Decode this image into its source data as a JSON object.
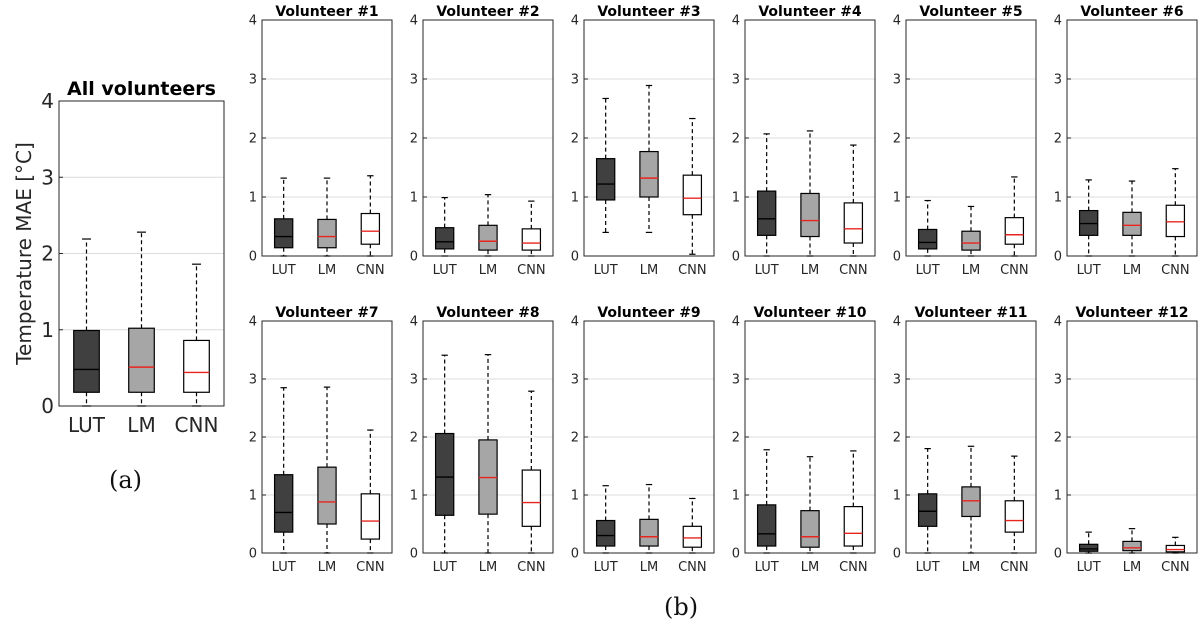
{
  "figure": {
    "label_a": "(a)",
    "label_b": "(b)"
  },
  "colors": {
    "LUT": "#404040",
    "LM": "#a6a6a6",
    "CNN": "#ffffff",
    "median_LUT": "#000000",
    "median_other": "#e8241f",
    "grid": "#dcdcdc"
  },
  "chart_data": [
    {
      "type": "box",
      "title": "All volunteers",
      "ylabel": "Temperature MAE [°C]",
      "categories": [
        "LUT",
        "LM",
        "CNN"
      ],
      "ylim": [
        0,
        4
      ],
      "yticks": [
        0,
        1,
        2,
        3,
        4
      ],
      "grid": "y",
      "boxes": [
        {
          "min": 0.0,
          "q1": 0.18,
          "median": 0.48,
          "q3": 0.99,
          "max": 2.19
        },
        {
          "min": 0.0,
          "q1": 0.18,
          "median": 0.51,
          "q3": 1.02,
          "max": 2.28
        },
        {
          "min": 0.0,
          "q1": 0.18,
          "median": 0.44,
          "q3": 0.86,
          "max": 1.86
        }
      ]
    },
    {
      "type": "box",
      "title": "Volunteer #1",
      "categories": [
        "LUT",
        "LM",
        "CNN"
      ],
      "ylim": [
        0,
        4
      ],
      "yticks": [
        0,
        1,
        2,
        3,
        4
      ],
      "boxes": [
        {
          "min": 0.0,
          "q1": 0.14,
          "median": 0.33,
          "q3": 0.63,
          "max": 1.32
        },
        {
          "min": 0.0,
          "q1": 0.14,
          "median": 0.33,
          "q3": 0.62,
          "max": 1.32
        },
        {
          "min": 0.0,
          "q1": 0.2,
          "median": 0.42,
          "q3": 0.72,
          "max": 1.36
        }
      ]
    },
    {
      "type": "box",
      "title": "Volunteer #2",
      "categories": [
        "LUT",
        "LM",
        "CNN"
      ],
      "ylim": [
        0,
        4
      ],
      "yticks": [
        0,
        1,
        2,
        3,
        4
      ],
      "boxes": [
        {
          "min": 0.0,
          "q1": 0.12,
          "median": 0.24,
          "q3": 0.48,
          "max": 0.99
        },
        {
          "min": 0.0,
          "q1": 0.1,
          "median": 0.25,
          "q3": 0.52,
          "max": 1.04
        },
        {
          "min": 0.0,
          "q1": 0.1,
          "median": 0.22,
          "q3": 0.46,
          "max": 0.93
        }
      ]
    },
    {
      "type": "box",
      "title": "Volunteer #3",
      "categories": [
        "LUT",
        "LM",
        "CNN"
      ],
      "ylim": [
        0,
        4
      ],
      "yticks": [
        0,
        1,
        2,
        3,
        4
      ],
      "boxes": [
        {
          "min": 0.4,
          "q1": 0.95,
          "median": 1.22,
          "q3": 1.65,
          "max": 2.67
        },
        {
          "min": 0.4,
          "q1": 1.0,
          "median": 1.32,
          "q3": 1.77,
          "max": 2.89
        },
        {
          "min": 0.03,
          "q1": 0.7,
          "median": 0.98,
          "q3": 1.37,
          "max": 2.33
        }
      ]
    },
    {
      "type": "box",
      "title": "Volunteer #4",
      "categories": [
        "LUT",
        "LM",
        "CNN"
      ],
      "ylim": [
        0,
        4
      ],
      "yticks": [
        0,
        1,
        2,
        3,
        4
      ],
      "boxes": [
        {
          "min": 0.0,
          "q1": 0.35,
          "median": 0.63,
          "q3": 1.1,
          "max": 2.07
        },
        {
          "min": 0.0,
          "q1": 0.33,
          "median": 0.6,
          "q3": 1.06,
          "max": 2.12
        },
        {
          "min": 0.0,
          "q1": 0.22,
          "median": 0.46,
          "q3": 0.9,
          "max": 1.88
        }
      ]
    },
    {
      "type": "box",
      "title": "Volunteer #5",
      "categories": [
        "LUT",
        "LM",
        "CNN"
      ],
      "ylim": [
        0,
        4
      ],
      "yticks": [
        0,
        1,
        2,
        3,
        4
      ],
      "boxes": [
        {
          "min": 0.0,
          "q1": 0.12,
          "median": 0.23,
          "q3": 0.45,
          "max": 0.94
        },
        {
          "min": 0.0,
          "q1": 0.1,
          "median": 0.22,
          "q3": 0.42,
          "max": 0.84
        },
        {
          "min": 0.0,
          "q1": 0.2,
          "median": 0.36,
          "q3": 0.65,
          "max": 1.34
        }
      ]
    },
    {
      "type": "box",
      "title": "Volunteer #6",
      "categories": [
        "LUT",
        "LM",
        "CNN"
      ],
      "ylim": [
        0,
        4
      ],
      "yticks": [
        0,
        1,
        2,
        3,
        4
      ],
      "boxes": [
        {
          "min": 0.0,
          "q1": 0.35,
          "median": 0.55,
          "q3": 0.77,
          "max": 1.29
        },
        {
          "min": 0.0,
          "q1": 0.35,
          "median": 0.52,
          "q3": 0.74,
          "max": 1.27
        },
        {
          "min": 0.0,
          "q1": 0.33,
          "median": 0.58,
          "q3": 0.86,
          "max": 1.48
        }
      ]
    },
    {
      "type": "box",
      "title": "Volunteer #7",
      "categories": [
        "LUT",
        "LM",
        "CNN"
      ],
      "ylim": [
        0,
        4
      ],
      "yticks": [
        0,
        1,
        2,
        3,
        4
      ],
      "boxes": [
        {
          "min": 0.0,
          "q1": 0.36,
          "median": 0.7,
          "q3": 1.35,
          "max": 2.85
        },
        {
          "min": 0.0,
          "q1": 0.5,
          "median": 0.88,
          "q3": 1.48,
          "max": 2.86
        },
        {
          "min": 0.0,
          "q1": 0.24,
          "median": 0.55,
          "q3": 1.02,
          "max": 2.12
        }
      ]
    },
    {
      "type": "box",
      "title": "Volunteer #8",
      "categories": [
        "LUT",
        "LM",
        "CNN"
      ],
      "ylim": [
        0,
        4
      ],
      "yticks": [
        0,
        1,
        2,
        3,
        4
      ],
      "boxes": [
        {
          "min": 0.0,
          "q1": 0.65,
          "median": 1.31,
          "q3": 2.06,
          "max": 3.41
        },
        {
          "min": 0.0,
          "q1": 0.67,
          "median": 1.3,
          "q3": 1.95,
          "max": 3.42
        },
        {
          "min": 0.0,
          "q1": 0.46,
          "median": 0.87,
          "q3": 1.43,
          "max": 2.79
        }
      ]
    },
    {
      "type": "box",
      "title": "Volunteer #9",
      "categories": [
        "LUT",
        "LM",
        "CNN"
      ],
      "ylim": [
        0,
        4
      ],
      "yticks": [
        0,
        1,
        2,
        3,
        4
      ],
      "boxes": [
        {
          "min": 0.0,
          "q1": 0.12,
          "median": 0.3,
          "q3": 0.56,
          "max": 1.16
        },
        {
          "min": 0.0,
          "q1": 0.12,
          "median": 0.28,
          "q3": 0.58,
          "max": 1.18
        },
        {
          "min": 0.0,
          "q1": 0.1,
          "median": 0.26,
          "q3": 0.46,
          "max": 0.94
        }
      ]
    },
    {
      "type": "box",
      "title": "Volunteer #10",
      "categories": [
        "LUT",
        "LM",
        "CNN"
      ],
      "ylim": [
        0,
        4
      ],
      "yticks": [
        0,
        1,
        2,
        3,
        4
      ],
      "boxes": [
        {
          "min": 0.0,
          "q1": 0.12,
          "median": 0.33,
          "q3": 0.83,
          "max": 1.78
        },
        {
          "min": 0.0,
          "q1": 0.1,
          "median": 0.28,
          "q3": 0.73,
          "max": 1.66
        },
        {
          "min": 0.0,
          "q1": 0.12,
          "median": 0.34,
          "q3": 0.8,
          "max": 1.76
        }
      ]
    },
    {
      "type": "box",
      "title": "Volunteer #11",
      "categories": [
        "LUT",
        "LM",
        "CNN"
      ],
      "ylim": [
        0,
        4
      ],
      "yticks": [
        0,
        1,
        2,
        3,
        4
      ],
      "boxes": [
        {
          "min": 0.0,
          "q1": 0.46,
          "median": 0.72,
          "q3": 1.02,
          "max": 1.8
        },
        {
          "min": 0.0,
          "q1": 0.63,
          "median": 0.9,
          "q3": 1.14,
          "max": 1.84
        },
        {
          "min": 0.0,
          "q1": 0.36,
          "median": 0.56,
          "q3": 0.9,
          "max": 1.67
        }
      ]
    },
    {
      "type": "box",
      "title": "Volunteer #12",
      "categories": [
        "LUT",
        "LM",
        "CNN"
      ],
      "ylim": [
        0,
        4
      ],
      "yticks": [
        0,
        1,
        2,
        3,
        4
      ],
      "boxes": [
        {
          "min": 0.0,
          "q1": 0.03,
          "median": 0.07,
          "q3": 0.15,
          "max": 0.36
        },
        {
          "min": 0.0,
          "q1": 0.04,
          "median": 0.09,
          "q3": 0.2,
          "max": 0.42
        },
        {
          "min": 0.0,
          "q1": 0.02,
          "median": 0.06,
          "q3": 0.13,
          "max": 0.27
        }
      ]
    }
  ]
}
